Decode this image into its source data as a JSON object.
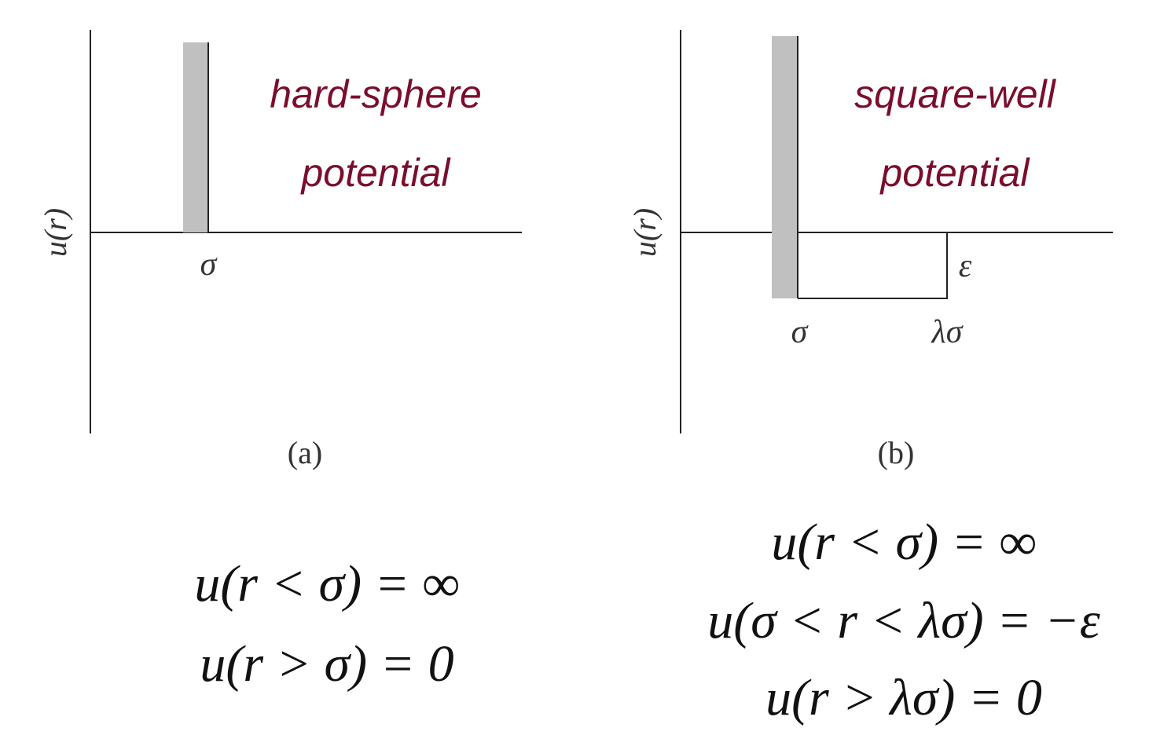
{
  "panel_a": {
    "title_line1": "hard-sphere",
    "title_line2": "potential",
    "ylabel": "u(r)",
    "sigma_label": "σ",
    "panel_label": "(a)",
    "equations": [
      "u(r < σ) = ∞",
      "u(r > σ) = 0"
    ]
  },
  "panel_b": {
    "title_line1": "square-well",
    "title_line2": "potential",
    "ylabel": "u(r)",
    "sigma_label": "σ",
    "lambda_sigma_label": "λσ",
    "epsilon_label": "ε",
    "panel_label": "(b)",
    "equations": [
      "u(r < σ) = ∞",
      "u(σ < r < λσ) = −ε",
      "u(r > λσ) = 0"
    ]
  },
  "colors": {
    "title": "#7a0e2c",
    "wall": "#c0c0c0",
    "axes": "#222222"
  }
}
